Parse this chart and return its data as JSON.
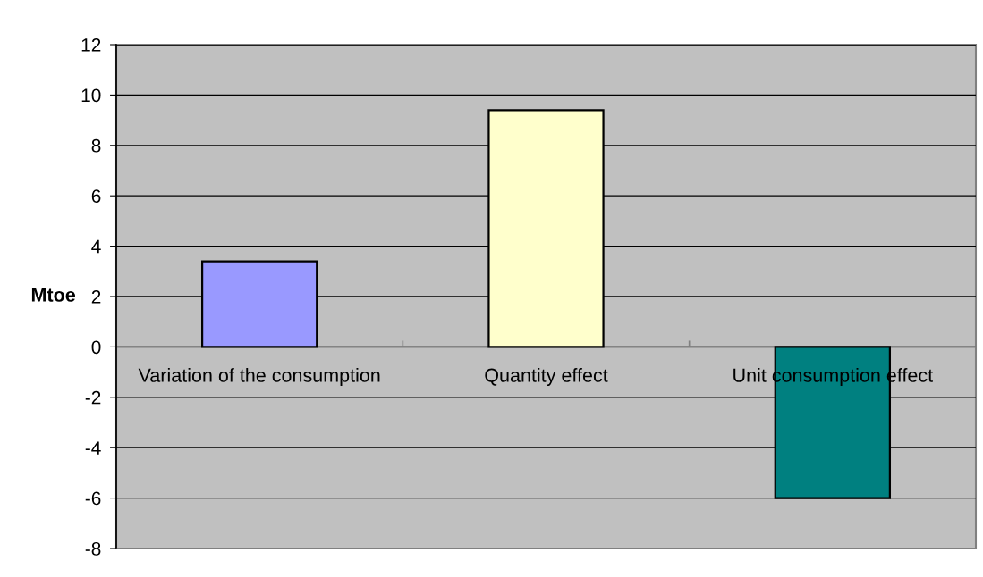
{
  "chart_data": {
    "type": "bar",
    "categories": [
      "Variation of the consumption",
      "Quantity effect",
      "Unit consumption effect"
    ],
    "values": [
      3.4,
      9.4,
      -6.0
    ],
    "colors": [
      "#9999ff",
      "#ffffcc",
      "#008080"
    ],
    "ylabel": "Mtoe",
    "ylim": [
      -8,
      12
    ],
    "yticks": [
      -8,
      -6,
      -4,
      -2,
      0,
      2,
      4,
      6,
      8,
      10,
      12
    ],
    "grid": "y"
  }
}
